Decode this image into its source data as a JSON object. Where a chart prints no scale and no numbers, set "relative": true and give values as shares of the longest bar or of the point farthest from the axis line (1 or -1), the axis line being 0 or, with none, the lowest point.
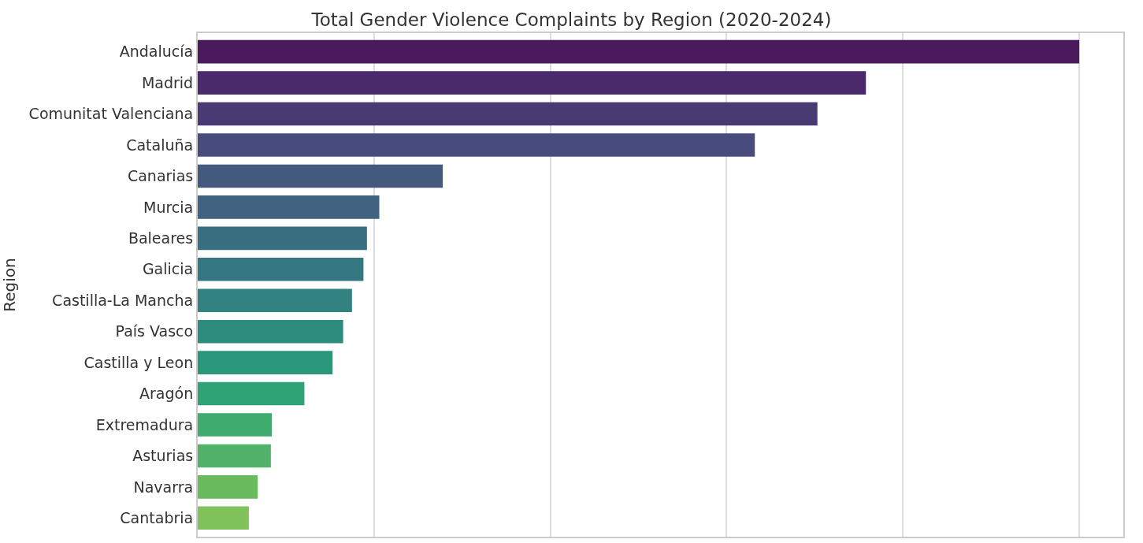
{
  "chart_data": {
    "type": "bar",
    "orientation": "horizontal",
    "relative": true,
    "title": "Total Gender Violence Complaints by Region (2020-2024)",
    "ylabel": "Region",
    "grid": "x",
    "categories": [
      "Andalucía",
      "Madrid",
      "Comunitat Valenciana",
      "Cataluña",
      "Canarias",
      "Murcia",
      "Baleares",
      "Galicia",
      "Castilla-La Mancha",
      "País Vasco",
      "Castilla y Leon",
      "Aragón",
      "Extremadura",
      "Asturias",
      "Navarra",
      "Cantabria"
    ],
    "values": [
      1,
      0.758,
      0.703,
      0.632,
      0.278,
      0.206,
      0.192,
      0.188,
      0.175,
      0.165,
      0.153,
      0.121,
      0.084,
      0.083,
      0.068,
      0.058
    ],
    "colors": [
      "#4a1a5c",
      "#4b2a6c",
      "#4a3a74",
      "#474c7c",
      "#43597e",
      "#3f6380",
      "#3a6e81",
      "#357780",
      "#318280",
      "#2d8c7e",
      "#2b977a",
      "#2fa276",
      "#3fab6f",
      "#52b269",
      "#69bb5e",
      "#80c35a"
    ]
  }
}
